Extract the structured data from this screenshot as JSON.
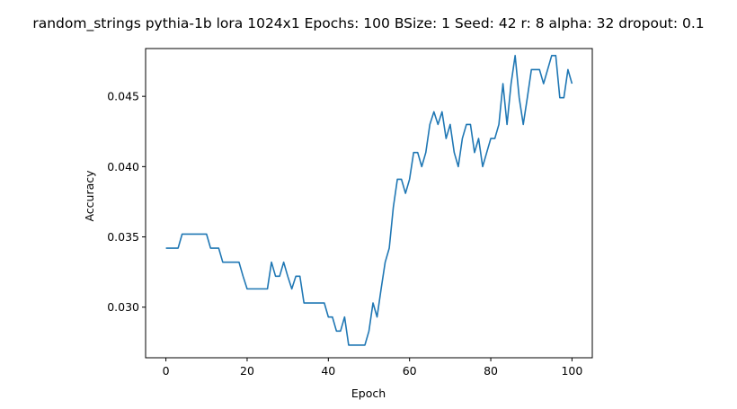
{
  "chart_data": {
    "type": "line",
    "title": "random_strings pythia-1b lora 1024x1 Epochs: 100 BSize: 1 Seed: 42 r: 8 alpha: 32 dropout: 0.1",
    "xlabel": "Epoch",
    "ylabel": "Accuracy",
    "xlim": [
      -5,
      105
    ],
    "ylim": [
      0.0264,
      0.0484
    ],
    "xticks": [
      0,
      20,
      40,
      60,
      80,
      100
    ],
    "xtick_labels": [
      "0",
      "20",
      "40",
      "60",
      "80",
      "100"
    ],
    "yticks": [
      0.03,
      0.035,
      0.04,
      0.045
    ],
    "ytick_labels": [
      "0.030",
      "0.035",
      "0.040",
      "0.045"
    ],
    "grid": false,
    "color": "#1f77b4",
    "series": [
      {
        "x": [
          0,
          1,
          2,
          3,
          4,
          5,
          6,
          7,
          8,
          9,
          10,
          11,
          12,
          13,
          14,
          15,
          16,
          17,
          18,
          19,
          20,
          21,
          22,
          23,
          24,
          25,
          26,
          27,
          28,
          29,
          30,
          31,
          32,
          33,
          34,
          35,
          36,
          37,
          38,
          39,
          40,
          41,
          42,
          43,
          44,
          45,
          46,
          47,
          48,
          49,
          50,
          51,
          52,
          53,
          54,
          55,
          56,
          57,
          58,
          59,
          60,
          61,
          62,
          63,
          64,
          65,
          66,
          67,
          68,
          69,
          70,
          71,
          72,
          73,
          74,
          75,
          76,
          77,
          78,
          79,
          80,
          81,
          82,
          83,
          84,
          85,
          86,
          87,
          88,
          89,
          90,
          91,
          92,
          93,
          94,
          95,
          96,
          97,
          98,
          99,
          100
        ],
        "y": [
          0.0342,
          0.0342,
          0.0342,
          0.0342,
          0.0352,
          0.0352,
          0.0352,
          0.0352,
          0.0352,
          0.0352,
          0.0352,
          0.0342,
          0.0342,
          0.0342,
          0.0332,
          0.0332,
          0.0332,
          0.0332,
          0.0332,
          0.0322,
          0.0313,
          0.0313,
          0.0313,
          0.0313,
          0.0313,
          0.0313,
          0.0332,
          0.0322,
          0.0322,
          0.0332,
          0.0322,
          0.0313,
          0.0322,
          0.0322,
          0.0303,
          0.0303,
          0.0303,
          0.0303,
          0.0303,
          0.0303,
          0.0293,
          0.0293,
          0.0283,
          0.0283,
          0.0293,
          0.0273,
          0.0273,
          0.0273,
          0.0273,
          0.0273,
          0.0283,
          0.0303,
          0.0293,
          0.0313,
          0.0332,
          0.0342,
          0.0371,
          0.0391,
          0.0391,
          0.0381,
          0.0391,
          0.041,
          0.041,
          0.04,
          0.041,
          0.043,
          0.0439,
          0.043,
          0.0439,
          0.042,
          0.043,
          0.041,
          0.04,
          0.042,
          0.043,
          0.043,
          0.041,
          0.042,
          0.04,
          0.041,
          0.042,
          0.042,
          0.043,
          0.0459,
          0.043,
          0.0459,
          0.0479,
          0.0449,
          0.043,
          0.0449,
          0.0469,
          0.0469,
          0.0469,
          0.0459,
          0.0469,
          0.0479,
          0.0479,
          0.0449,
          0.0449,
          0.0469,
          0.0459
        ]
      }
    ]
  }
}
